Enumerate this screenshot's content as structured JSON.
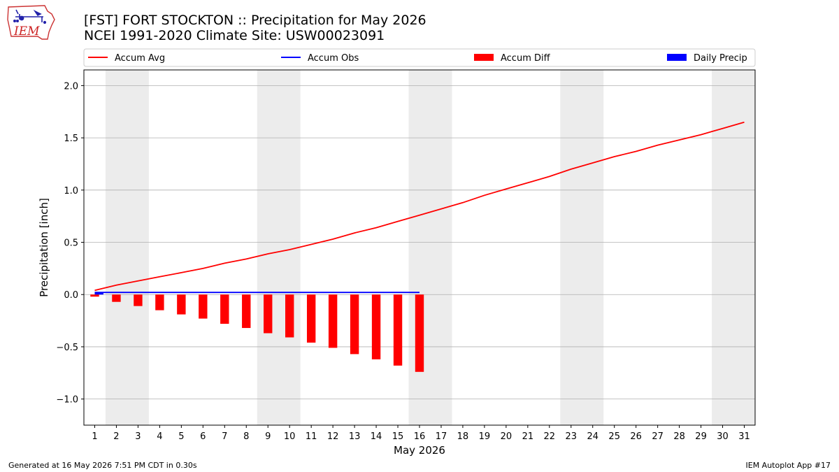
{
  "header": {
    "title_line1": "[FST] FORT STOCKTON :: Precipitation for May 2026",
    "title_line2": "NCEI 1991-2020 Climate Site: USW00023091",
    "logo_text": "IEM"
  },
  "footer": {
    "generated": "Generated at 16 May 2026 7:51 PM CDT in 0.30s",
    "app": "IEM Autoplot App #17"
  },
  "colors": {
    "avg": "#ff0000",
    "obs": "#0000ff",
    "diff": "#ff0000",
    "daily": "#0000ff",
    "weekend_shade": "#ececec",
    "grid": "#b0b0b0"
  },
  "chart_data": {
    "type": "bar",
    "xlabel": "May 2026",
    "ylabel": "Precipitation [inch]",
    "xlim": [
      0.5,
      31.5
    ],
    "ylim": [
      -1.25,
      2.15
    ],
    "yticks": [
      -1.0,
      -0.5,
      0.0,
      0.5,
      1.0,
      1.5,
      2.0
    ],
    "ytick_labels": [
      "−1.0",
      "−0.5",
      "0.0",
      "0.5",
      "1.0",
      "1.5",
      "2.0"
    ],
    "xticks": [
      1,
      2,
      3,
      4,
      5,
      6,
      7,
      8,
      9,
      10,
      11,
      12,
      13,
      14,
      15,
      16,
      17,
      18,
      19,
      20,
      21,
      22,
      23,
      24,
      25,
      26,
      27,
      28,
      29,
      30,
      31
    ],
    "grid": "horizontal",
    "legend_position": "top, above plot",
    "weekend_shading": [
      [
        1.5,
        3.5
      ],
      [
        8.5,
        10.5
      ],
      [
        15.5,
        17.5
      ],
      [
        22.5,
        24.5
      ],
      [
        29.5,
        31.5
      ]
    ],
    "legend": [
      {
        "label": "Accum Avg",
        "kind": "line",
        "color": "#ff0000"
      },
      {
        "label": "Accum Obs",
        "kind": "line",
        "color": "#0000ff"
      },
      {
        "label": "Accum Diff",
        "kind": "bar",
        "color": "#ff0000"
      },
      {
        "label": "Daily Precip",
        "kind": "bar",
        "color": "#0000ff"
      }
    ],
    "series": [
      {
        "name": "Accum Avg",
        "type": "line",
        "x": [
          1,
          2,
          3,
          4,
          5,
          6,
          7,
          8,
          9,
          10,
          11,
          12,
          13,
          14,
          15,
          16,
          17,
          18,
          19,
          20,
          21,
          22,
          23,
          24,
          25,
          26,
          27,
          28,
          29,
          30,
          31
        ],
        "values": [
          0.04,
          0.09,
          0.13,
          0.17,
          0.21,
          0.25,
          0.3,
          0.34,
          0.39,
          0.43,
          0.48,
          0.53,
          0.59,
          0.64,
          0.7,
          0.76,
          0.82,
          0.88,
          0.95,
          1.01,
          1.07,
          1.13,
          1.2,
          1.26,
          1.32,
          1.37,
          1.43,
          1.48,
          1.53,
          1.59,
          1.65
        ]
      },
      {
        "name": "Accum Obs",
        "type": "line",
        "x": [
          1,
          2,
          3,
          4,
          5,
          6,
          7,
          8,
          9,
          10,
          11,
          12,
          13,
          14,
          15,
          16
        ],
        "values": [
          0.02,
          0.02,
          0.02,
          0.02,
          0.02,
          0.02,
          0.02,
          0.02,
          0.02,
          0.02,
          0.02,
          0.02,
          0.02,
          0.02,
          0.02,
          0.02
        ]
      },
      {
        "name": "Accum Diff",
        "type": "bar",
        "x": [
          1,
          2,
          3,
          4,
          5,
          6,
          7,
          8,
          9,
          10,
          11,
          12,
          13,
          14,
          15,
          16
        ],
        "values": [
          -0.02,
          -0.07,
          -0.11,
          -0.15,
          -0.19,
          -0.23,
          -0.28,
          -0.32,
          -0.37,
          -0.41,
          -0.46,
          -0.51,
          -0.57,
          -0.62,
          -0.68,
          -0.74
        ]
      },
      {
        "name": "Daily Precip",
        "type": "bar",
        "x": [
          1
        ],
        "values": [
          0.02
        ]
      }
    ]
  }
}
